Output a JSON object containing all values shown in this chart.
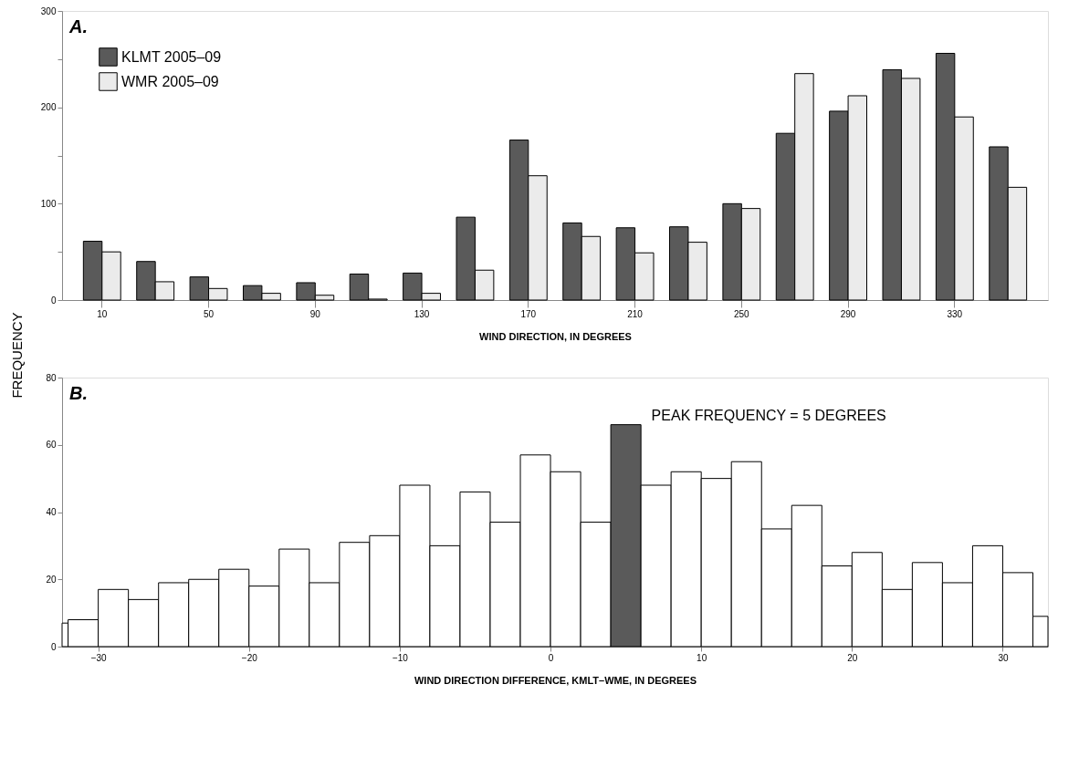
{
  "chart_data": [
    {
      "type": "bar",
      "title": "A.",
      "xlabel": "WIND DIRECTION, IN DEGREES",
      "ylabel": "FREQUENCY",
      "categories": [
        "10",
        null,
        "50",
        null,
        "90",
        null,
        "130",
        null,
        "170",
        null,
        "210",
        null,
        "250",
        null,
        "290",
        null,
        "330",
        null
      ],
      "series": [
        {
          "name": "KLMT 2005–09",
          "color": "#5a5a5a",
          "values": [
            61,
            40,
            24,
            15,
            18,
            27,
            28,
            86,
            166,
            80,
            75,
            76,
            100,
            173,
            196,
            239,
            256,
            159
          ]
        },
        {
          "name": "WMR 2005–09",
          "color": "#ebebeb",
          "values": [
            50,
            19,
            12,
            7,
            5,
            1,
            7,
            31,
            129,
            66,
            49,
            60,
            95,
            235,
            212,
            230,
            190,
            117
          ]
        }
      ],
      "ylim": [
        0,
        300
      ],
      "yticks": [
        0,
        {
          "value": 50,
          "label": null
        },
        100,
        {
          "value": 150,
          "label": null
        },
        200,
        {
          "value": 250,
          "label": null
        },
        300
      ],
      "grid": false,
      "legend": "top left"
    },
    {
      "type": "histogram",
      "title": "B.",
      "xlabel": "WIND DIRECTION DIFFERENCE, KMLT–WME, IN DEGREES",
      "bins": [
        -32.4,
        -32,
        -30,
        -28,
        -26,
        -24,
        -22,
        -20,
        -18,
        -16,
        -14,
        -12,
        -10,
        -8,
        -6,
        -4,
        -2,
        0,
        2,
        4,
        6,
        8,
        10,
        12,
        14,
        16,
        18,
        20,
        22,
        24,
        26,
        28,
        30,
        32,
        33
      ],
      "values": [
        7,
        8,
        17,
        14,
        19,
        20,
        23,
        18,
        29,
        19,
        31,
        33,
        48,
        30,
        46,
        37,
        57,
        52,
        37,
        66,
        48,
        52,
        50,
        55,
        35,
        42,
        24,
        28,
        17,
        25,
        19,
        30,
        22,
        9
      ],
      "colors": [
        "#ffffff",
        "#ffffff",
        "#ffffff",
        "#ffffff",
        "#ffffff",
        "#ffffff",
        "#ffffff",
        "#ffffff",
        "#ffffff",
        "#ffffff",
        "#ffffff",
        "#ffffff",
        "#ffffff",
        "#ffffff",
        "#ffffff",
        "#ffffff",
        "#ffffff",
        "#ffffff",
        "#ffffff",
        "#5a5a5a",
        "#ffffff",
        "#ffffff",
        "#ffffff",
        "#ffffff",
        "#ffffff",
        "#ffffff",
        "#ffffff",
        "#ffffff",
        "#ffffff",
        "#ffffff",
        "#ffffff",
        "#ffffff",
        "#ffffff",
        "#ffffff"
      ],
      "xlim": [
        -32.4,
        33
      ],
      "xticks": [
        -30,
        -20,
        -10,
        0,
        10,
        20,
        30
      ],
      "ylim": [
        0,
        80
      ],
      "yticks": [
        0,
        20,
        40,
        60,
        80
      ],
      "grid": false,
      "annotations": [
        {
          "text": "PEAK FREQUENCY = 5 DEGREES",
          "x": 5,
          "y": 66
        }
      ]
    }
  ]
}
